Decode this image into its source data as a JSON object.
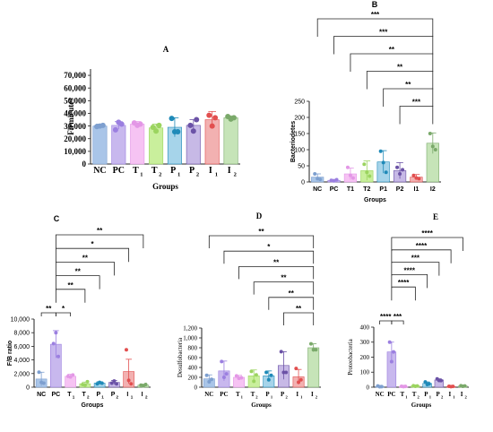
{
  "chart_data": [
    {
      "type": "bar",
      "panel_label": "A",
      "ylabel": "Firmicutes",
      "xlabel": "Groups",
      "categories": [
        [
          "NC",
          ""
        ],
        [
          "PC",
          ""
        ],
        [
          "T",
          "1"
        ],
        [
          "T",
          "2"
        ],
        [
          "P",
          "1"
        ],
        [
          "P",
          "2"
        ],
        [
          "I",
          "1"
        ],
        [
          "I",
          "2"
        ]
      ],
      "values": [
        30000,
        30500,
        31500,
        28500,
        29000,
        30500,
        35000,
        36500
      ],
      "errors": [
        1500,
        3000,
        2000,
        3000,
        7500,
        4500,
        6500,
        1500
      ],
      "points": [
        [
          29500,
          30000,
          30500
        ],
        [
          27000,
          33000,
          31500
        ],
        [
          32500,
          30500,
          31500
        ],
        [
          29000,
          26000,
          30500
        ],
        [
          36000,
          25500,
          25500
        ],
        [
          30500,
          26000,
          35000
        ],
        [
          38500,
          30000,
          36500
        ],
        [
          37500,
          35500,
          36500
        ]
      ],
      "yticks": [
        "0",
        "10,000",
        "20,000",
        "30,000",
        "40,000",
        "50,000",
        "60,000",
        "70,000"
      ],
      "ylim": [
        0,
        75000
      ],
      "colors": [
        "#a9c5e8",
        "#c8b8ee",
        "#f6c3f3",
        "#c9ef9c",
        "#a6d4ea",
        "#c7b9e6",
        "#f2b1b1",
        "#c6e4b8"
      ],
      "point_colors": [
        "#7d9fcf",
        "#9b7fe0",
        "#e397e6",
        "#9bd45f",
        "#1f8ab8",
        "#6b52a6",
        "#e24f4f",
        "#7aa96a"
      ],
      "significance": []
    },
    {
      "type": "bar",
      "panel_label": "B",
      "ylabel": "Bacteriodetes",
      "xlabel": "Groups",
      "categories": [
        [
          "NC",
          ""
        ],
        [
          "PC",
          ""
        ],
        [
          "T1",
          ""
        ],
        [
          "T2",
          ""
        ],
        [
          "P1",
          ""
        ],
        [
          "P2",
          ""
        ],
        [
          "I1",
          ""
        ],
        [
          "I2",
          ""
        ]
      ],
      "values": [
        15,
        5,
        25,
        35,
        62,
        35,
        15,
        120
      ],
      "errors": [
        10,
        3,
        18,
        30,
        35,
        25,
        8,
        32
      ],
      "points": [
        [
          25,
          10,
          8
        ],
        [
          5,
          3,
          7
        ],
        [
          45,
          20,
          12
        ],
        [
          55,
          30,
          18
        ],
        [
          95,
          60,
          30
        ],
        [
          45,
          25,
          38
        ],
        [
          20,
          12,
          10
        ],
        [
          150,
          110,
          100
        ]
      ],
      "yticks": [
        "0",
        "50",
        "100",
        "150",
        "200",
        "250"
      ],
      "ylim": [
        0,
        250
      ],
      "colors": [
        "#a9c5e8",
        "#c8b8ee",
        "#f6c3f3",
        "#c9ef9c",
        "#a6d4ea",
        "#c7b9e6",
        "#f2b1b1",
        "#c6e4b8"
      ],
      "point_colors": [
        "#7d9fcf",
        "#9b7fe0",
        "#e397e6",
        "#9bd45f",
        "#1f8ab8",
        "#6b52a6",
        "#e24f4f",
        "#7aa96a"
      ],
      "significance": [
        {
          "from": 0,
          "to": 7,
          "label": "***"
        },
        {
          "from": 1,
          "to": 7,
          "label": "***"
        },
        {
          "from": 2,
          "to": 7,
          "label": "**"
        },
        {
          "from": 3,
          "to": 7,
          "label": "**"
        },
        {
          "from": 4,
          "to": 7,
          "label": "**"
        },
        {
          "from": 5,
          "to": 7,
          "label": "***"
        }
      ]
    },
    {
      "type": "bar",
      "panel_label": "C",
      "ylabel": "F/B ratio",
      "xlabel": "Groups",
      "categories": [
        [
          "NC",
          ""
        ],
        [
          "PC",
          ""
        ],
        [
          "T",
          "1"
        ],
        [
          "T",
          "2"
        ],
        [
          "P",
          "1"
        ],
        [
          "P",
          "2"
        ],
        [
          "I",
          "1"
        ],
        [
          "I",
          "2"
        ]
      ],
      "values": [
        1200,
        6300,
        1600,
        500,
        600,
        700,
        2300,
        300
      ],
      "errors": [
        1000,
        2000,
        300,
        250,
        200,
        300,
        1800,
        150
      ],
      "points": [
        [
          2200,
          700,
          600
        ],
        [
          6400,
          8000,
          4500
        ],
        [
          1600,
          1500,
          1800
        ],
        [
          400,
          300,
          800
        ],
        [
          500,
          700,
          600
        ],
        [
          600,
          900,
          500
        ],
        [
          5500,
          1000,
          500
        ],
        [
          300,
          200,
          400
        ]
      ],
      "yticks": [
        "0",
        "2,000",
        "4,000",
        "6,000",
        "8,000",
        "10,000"
      ],
      "ylim": [
        0,
        10000
      ],
      "colors": [
        "#a9c5e8",
        "#c8b8ee",
        "#f6c3f3",
        "#c9ef9c",
        "#a6d4ea",
        "#c7b9e6",
        "#f2b1b1",
        "#c6e4b8"
      ],
      "point_colors": [
        "#7d9fcf",
        "#9b7fe0",
        "#e397e6",
        "#9bd45f",
        "#1f8ab8",
        "#6b52a6",
        "#e24f4f",
        "#7aa96a"
      ],
      "significance": [
        {
          "from": 1,
          "to": 7,
          "label": "**"
        },
        {
          "from": 1,
          "to": 6,
          "label": "*"
        },
        {
          "from": 1,
          "to": 5,
          "label": "**"
        },
        {
          "from": 1,
          "to": 4,
          "label": "**"
        },
        {
          "from": 1,
          "to": 3,
          "label": "**"
        },
        {
          "from": 0,
          "to": 1,
          "label": "**"
        },
        {
          "from": 1,
          "to": 2,
          "label": "*"
        }
      ]
    },
    {
      "type": "bar",
      "panel_label": "D",
      "ylabel": "Desulfobacteria",
      "xlabel": "Groups",
      "categories": [
        [
          "NC",
          ""
        ],
        [
          "PC",
          ""
        ],
        [
          "T",
          "1"
        ],
        [
          "T",
          "2"
        ],
        [
          "P",
          "1"
        ],
        [
          "P",
          "2"
        ],
        [
          "I",
          "1"
        ],
        [
          "I",
          "2"
        ]
      ],
      "values": [
        170,
        330,
        200,
        230,
        230,
        440,
        210,
        800
      ],
      "errors": [
        80,
        200,
        40,
        120,
        100,
        280,
        150,
        80
      ],
      "points": [
        [
          240,
          110,
          160
        ],
        [
          520,
          200,
          270
        ],
        [
          230,
          180,
          190
        ],
        [
          320,
          120,
          250
        ],
        [
          300,
          150,
          240
        ],
        [
          720,
          300,
          300
        ],
        [
          380,
          100,
          150
        ],
        [
          880,
          760,
          760
        ]
      ],
      "yticks": [
        "0",
        "200",
        "400",
        "600",
        "800",
        "1,000",
        "1,200"
      ],
      "ylim": [
        0,
        1200
      ],
      "colors": [
        "#a9c5e8",
        "#c8b8ee",
        "#f6c3f3",
        "#c9ef9c",
        "#a6d4ea",
        "#c7b9e6",
        "#f2b1b1",
        "#c6e4b8"
      ],
      "point_colors": [
        "#7d9fcf",
        "#9b7fe0",
        "#e397e6",
        "#9bd45f",
        "#1f8ab8",
        "#6b52a6",
        "#e24f4f",
        "#7aa96a"
      ],
      "significance": [
        {
          "from": 0,
          "to": 7,
          "label": "**"
        },
        {
          "from": 1,
          "to": 7,
          "label": "*"
        },
        {
          "from": 2,
          "to": 7,
          "label": "**"
        },
        {
          "from": 3,
          "to": 7,
          "label": "**"
        },
        {
          "from": 4,
          "to": 7,
          "label": "**"
        },
        {
          "from": 5,
          "to": 7,
          "label": "**"
        }
      ]
    },
    {
      "type": "bar",
      "panel_label": "E",
      "ylabel": "Proteobacteria",
      "xlabel": "Groups",
      "categories": [
        [
          "NC",
          ""
        ],
        [
          "PC",
          ""
        ],
        [
          "T",
          "1"
        ],
        [
          "T",
          "2"
        ],
        [
          "P",
          "1"
        ],
        [
          "P",
          "2"
        ],
        [
          "I",
          "1"
        ],
        [
          "I",
          "2"
        ]
      ],
      "values": [
        5,
        235,
        5,
        8,
        25,
        48,
        5,
        8
      ],
      "errors": [
        4,
        65,
        3,
        5,
        10,
        8,
        3,
        5
      ],
      "points": [
        [
          8,
          3,
          4
        ],
        [
          300,
          170,
          235
        ],
        [
          6,
          4,
          5
        ],
        [
          10,
          6,
          8
        ],
        [
          35,
          18,
          22
        ],
        [
          55,
          45,
          44
        ],
        [
          6,
          4,
          5
        ],
        [
          10,
          6,
          8
        ]
      ],
      "yticks": [
        "0",
        "100",
        "200",
        "300",
        "400"
      ],
      "ylim": [
        0,
        400
      ],
      "colors": [
        "#a9c5e8",
        "#c8b8ee",
        "#f6c3f3",
        "#c9ef9c",
        "#a6d4ea",
        "#c7b9e6",
        "#f2b1b1",
        "#c6e4b8"
      ],
      "point_colors": [
        "#7d9fcf",
        "#9b7fe0",
        "#e397e6",
        "#9bd45f",
        "#1f8ab8",
        "#6b52a6",
        "#e24f4f",
        "#7aa96a"
      ],
      "significance": [
        {
          "from": 1,
          "to": 7,
          "label": "****"
        },
        {
          "from": 1,
          "to": 6,
          "label": "****"
        },
        {
          "from": 1,
          "to": 5,
          "label": "***"
        },
        {
          "from": 1,
          "to": 4,
          "label": "****"
        },
        {
          "from": 1,
          "to": 3,
          "label": "****"
        },
        {
          "from": 0,
          "to": 1,
          "label": "****"
        },
        {
          "from": 1,
          "to": 2,
          "label": "***"
        }
      ]
    }
  ]
}
